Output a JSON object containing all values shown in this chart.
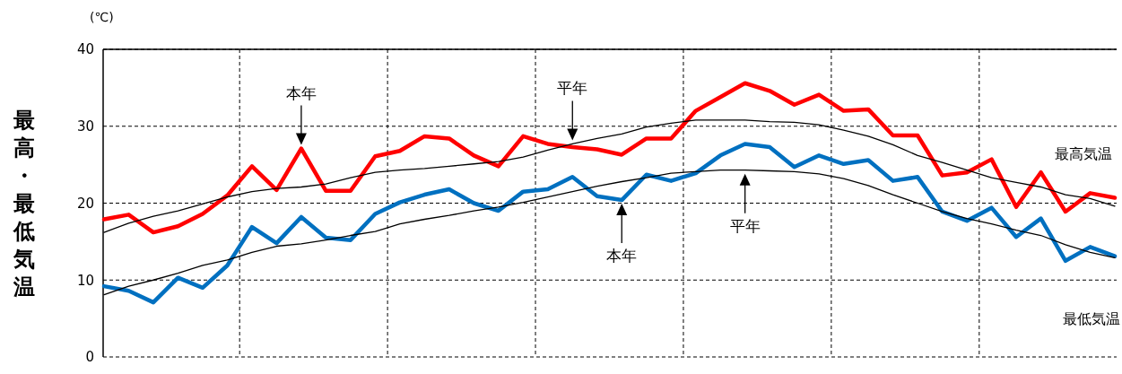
{
  "chart_data": {
    "type": "line",
    "ylabel": "最高・最低気温",
    "annotations": [
      "(℃)",
      "最高気温",
      "最低気温",
      "本年",
      "平年",
      "本年",
      "平年"
    ],
    "categories": [
      null,
      null,
      null,
      null,
      null,
      null,
      null,
      null,
      null,
      null,
      null,
      null,
      null,
      null,
      null,
      null,
      null,
      null,
      null,
      null,
      null,
      null,
      null,
      null,
      null,
      null,
      null,
      null,
      null,
      null,
      null,
      null,
      null,
      null,
      null,
      null,
      null,
      null,
      null,
      null,
      null,
      null
    ],
    "series": [
      {
        "color": "#ff0000",
        "values": [
          17.9,
          18.5,
          16.2,
          17.0,
          18.6,
          21.0,
          24.8,
          21.7,
          27.1,
          21.6,
          21.6,
          26.1,
          26.8,
          28.7,
          28.4,
          26.2,
          24.8,
          28.7,
          27.7,
          27.3,
          27.0,
          26.3,
          28.4,
          28.4,
          32.0,
          33.8,
          35.6,
          34.6,
          32.8,
          34.1,
          32.0,
          32.2,
          28.8,
          28.8,
          23.6,
          24.0,
          25.7,
          19.5,
          24.0,
          18.9,
          21.3,
          20.7
        ]
      },
      {
        "color": "#000000",
        "values": [
          16.2,
          17.4,
          18.3,
          19.0,
          19.9,
          20.8,
          21.5,
          21.9,
          22.1,
          22.5,
          23.3,
          24.0,
          24.3,
          24.5,
          24.8,
          25.1,
          25.4,
          26.0,
          26.9,
          27.7,
          28.4,
          29.0,
          29.9,
          30.4,
          30.8,
          30.8,
          30.8,
          30.6,
          30.5,
          30.2,
          29.5,
          28.7,
          27.6,
          26.2,
          25.3,
          24.3,
          23.3,
          22.7,
          22.1,
          21.1,
          20.6,
          19.6
        ]
      },
      {
        "color": "#0070c0",
        "values": [
          9.2,
          8.6,
          7.1,
          10.3,
          9.0,
          11.9,
          16.9,
          14.8,
          18.2,
          15.5,
          15.2,
          18.6,
          20.1,
          21.1,
          21.8,
          20.0,
          19.0,
          21.5,
          21.8,
          23.4,
          20.9,
          20.4,
          23.7,
          22.9,
          23.9,
          26.2,
          27.7,
          27.3,
          24.7,
          26.2,
          25.1,
          25.6,
          22.9,
          23.4,
          18.9,
          17.7,
          19.4,
          15.6,
          18.0,
          12.5,
          14.3,
          13.1
        ]
      },
      {
        "color": "#000000",
        "values": [
          8.1,
          9.2,
          10.0,
          10.9,
          11.9,
          12.6,
          13.6,
          14.4,
          14.7,
          15.2,
          15.8,
          16.3,
          17.3,
          17.9,
          18.4,
          19.0,
          19.5,
          20.1,
          20.8,
          21.5,
          22.2,
          22.8,
          23.3,
          23.9,
          24.1,
          24.3,
          24.3,
          24.2,
          24.1,
          23.8,
          23.2,
          22.3,
          21.1,
          20.0,
          18.9,
          18.0,
          17.3,
          16.5,
          15.8,
          14.6,
          13.6,
          12.9
        ]
      }
    ],
    "ylim": [
      0,
      40
    ],
    "yticks": [
      0,
      10,
      20,
      30,
      40
    ],
    "grid": true
  }
}
